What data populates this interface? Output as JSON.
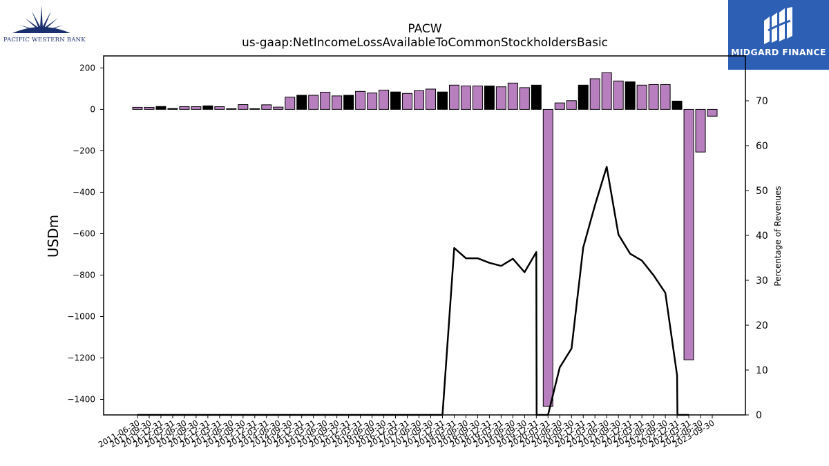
{
  "header": {
    "title": "PACW",
    "subtitle": "us-gaap:NetIncomeLossAvailableToCommonStockholdersBasic"
  },
  "logos": {
    "left_text": "PACIFIC WESTERN BANK",
    "right_text": "MIDGARD FINANCE"
  },
  "colors": {
    "bar_purple": "#b87fbf",
    "bar_black": "#000000",
    "line": "#000000",
    "brand_navy": "#1a2f6d",
    "brand_blue": "#2d5fb4"
  },
  "chart_data": {
    "type": "bar",
    "title": "PACW",
    "subtitle": "us-gaap:NetIncomeLossAvailableToCommonStockholdersBasic",
    "ylabel": "USDm",
    "y2label": "Percentage of Revenues",
    "ylim": [
      -1475,
      258
    ],
    "y2lim": [
      0,
      80
    ],
    "yticks": [
      200,
      0,
      -200,
      -400,
      -600,
      -800,
      -1000,
      -1200,
      -1400
    ],
    "yticklabels": [
      "200",
      "0",
      "−200",
      "−400",
      "−600",
      "−800",
      "−1000",
      "−1200",
      "−1400"
    ],
    "y2ticks": [
      0,
      10,
      20,
      30,
      40,
      50,
      60,
      70
    ],
    "grid": false,
    "categories": [
      "2011-06-30",
      "2011-09-30",
      "2011-12-31",
      "2012-03-31",
      "2012-06-30",
      "2012-09-30",
      "2012-12-31",
      "2013-03-31",
      "2013-06-30",
      "2013-09-30",
      "2013-12-31",
      "2014-03-31",
      "2014-06-30",
      "2014-09-30",
      "2014-12-31",
      "2015-03-31",
      "2015-06-30",
      "2015-09-30",
      "2015-12-31",
      "2016-03-31",
      "2016-06-30",
      "2016-09-30",
      "2016-12-31",
      "2017-03-31",
      "2017-06-30",
      "2017-09-30",
      "2017-12-31",
      "2018-03-31",
      "2018-06-30",
      "2018-09-30",
      "2018-12-31",
      "2019-03-31",
      "2019-06-30",
      "2019-09-30",
      "2019-12-31",
      "2020-03-31",
      "2020-06-30",
      "2020-09-30",
      "2020-12-31",
      "2021-03-31",
      "2021-06-30",
      "2021-09-30",
      "2021-12-31",
      "2022-03-31",
      "2022-06-30",
      "2022-09-30",
      "2022-12-31",
      "2023-03-31",
      "2023-06-30",
      "2023-09-30"
    ],
    "series": [
      {
        "type": "bar",
        "values": [
          10,
          10,
          14,
          4,
          13,
          13,
          17,
          13,
          3,
          23,
          3,
          22,
          11,
          59,
          68,
          68,
          83,
          65,
          68,
          87,
          79,
          93,
          84,
          77,
          90,
          98,
          84,
          117,
          113,
          113,
          113,
          109,
          127,
          105,
          117,
          -1433,
          31,
          42,
          117,
          148,
          177,
          137,
          133,
          117,
          120,
          120,
          40,
          -1209,
          -206,
          -33
        ],
        "colors": [
          "p",
          "p",
          "k",
          "k",
          "p",
          "p",
          "k",
          "p",
          "k",
          "p",
          "k",
          "p",
          "p",
          "p",
          "k",
          "p",
          "p",
          "p",
          "k",
          "p",
          "p",
          "p",
          "k",
          "p",
          "p",
          "p",
          "k",
          "p",
          "p",
          "p",
          "k",
          "p",
          "p",
          "p",
          "k",
          "p",
          "p",
          "p",
          "k",
          "p",
          "p",
          "p",
          "k",
          "p",
          "p",
          "p",
          "k",
          "p",
          "p",
          "p"
        ]
      },
      {
        "type": "line",
        "axis": "right",
        "values": [
          0,
          0,
          0,
          0,
          0,
          0,
          0,
          0,
          0,
          0,
          0,
          0,
          0,
          0,
          0,
          0,
          0,
          0,
          0,
          0,
          0,
          0,
          0,
          0,
          0,
          0,
          0,
          37.2,
          34.9,
          34.9,
          33.9,
          33.2,
          34.8,
          31.8,
          36.3,
          0,
          10.6,
          14.8,
          37.3,
          46.7,
          55.3,
          40.2,
          35.9,
          34.4,
          31.1,
          27.2,
          8.8,
          0,
          null,
          null
        ],
        "drops": [
          {
            "at": 34,
            "to": 0
          },
          {
            "at": 46,
            "to": 0
          }
        ]
      }
    ]
  }
}
